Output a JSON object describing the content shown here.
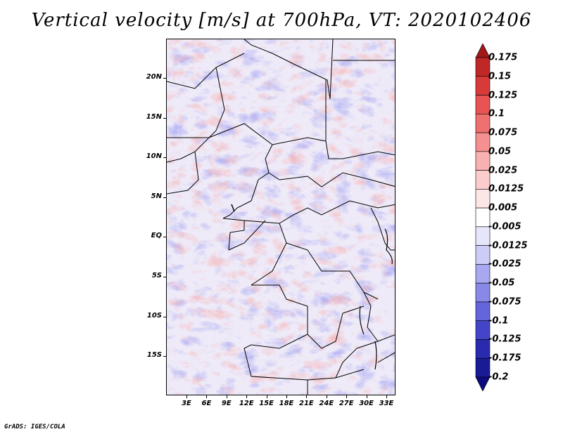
{
  "title": "Vertical velocity [m/s] at 700hPa, VT: 2020102406",
  "credit": "GrADS: IGES/COLA",
  "map": {
    "lat_ticks": [
      "20N",
      "15N",
      "10N",
      "5N",
      "EQ",
      "5S",
      "10S",
      "15S"
    ],
    "lon_ticks": [
      "3E",
      "6E",
      "9E",
      "12E",
      "15E",
      "18E",
      "21E",
      "24E",
      "27E",
      "30E",
      "33E"
    ]
  },
  "colorbar": {
    "labels": [
      "0.175",
      "0.15",
      "0.125",
      "0.1",
      "0.075",
      "0.05",
      "0.025",
      "0.0125",
      "0.005",
      "-0.005",
      "-0.0125",
      "-0.025",
      "-0.05",
      "-0.075",
      "-0.1",
      "-0.125",
      "-0.175",
      "-0.2"
    ],
    "colors": [
      "#a01818",
      "#c02828",
      "#d83a3a",
      "#e85454",
      "#f07070",
      "#f49090",
      "#f8b0b0",
      "#fbcccc",
      "#fde6e6",
      "#ffffff",
      "#e6e6fb",
      "#ccccf6",
      "#a8a8f0",
      "#8888e6",
      "#6464dc",
      "#4444c8",
      "#2a2ab0",
      "#1a1a96",
      "#0c0c80"
    ]
  },
  "colors": {
    "positive": "#e05a5a",
    "negative": "#5a5ae0",
    "border": "#000000"
  }
}
